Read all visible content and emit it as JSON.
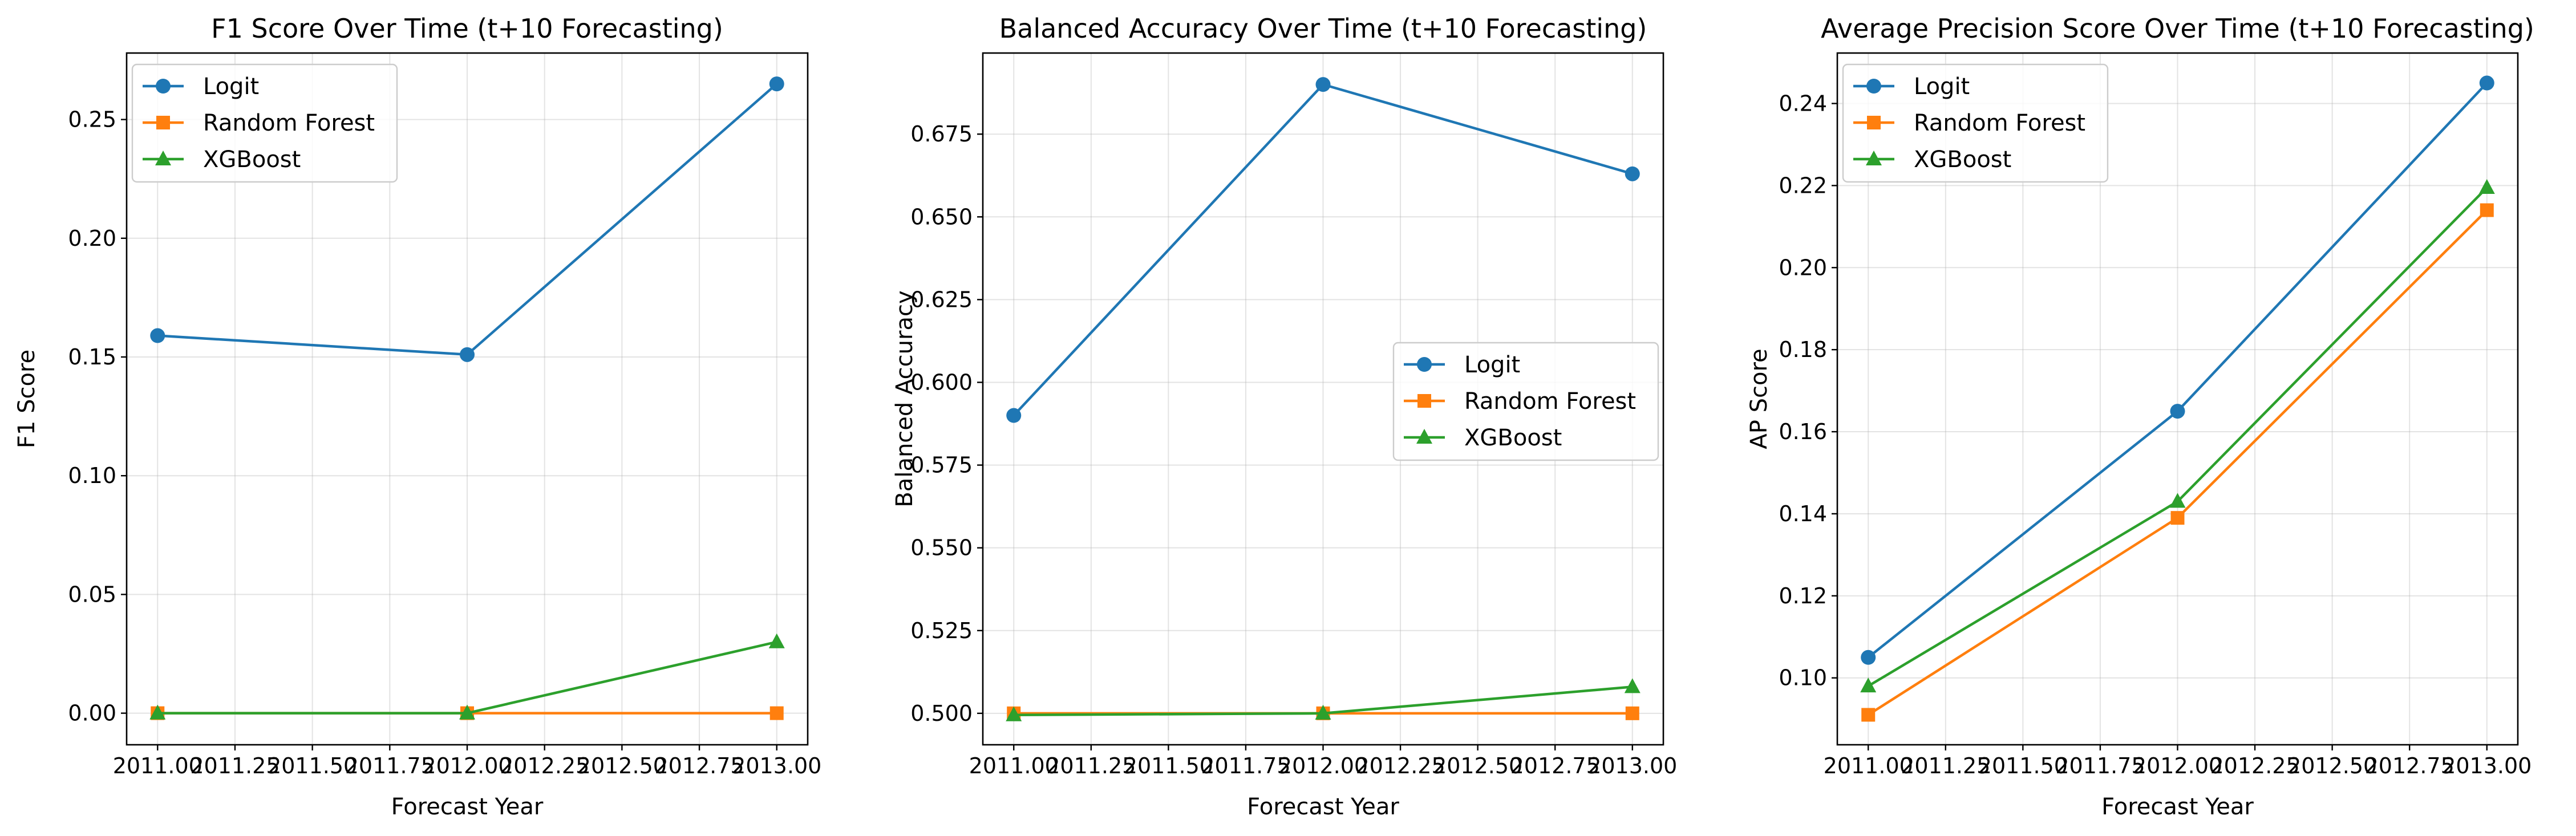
{
  "chart_data": [
    {
      "type": "line",
      "title": "F1 Score Over Time (t+10 Forecasting)",
      "xlabel": "Forecast Year",
      "ylabel": "F1 Score",
      "x": [
        2011,
        2012,
        2013
      ],
      "xticks": [
        "2011.00",
        "2011.25",
        "2011.50",
        "2011.75",
        "2012.00",
        "2012.25",
        "2012.50",
        "2012.75",
        "2013.00"
      ],
      "xlim": [
        2010.9,
        2013.1
      ],
      "ylim": [
        -0.0133,
        0.278
      ],
      "yticks": [
        "0.00",
        "0.05",
        "0.10",
        "0.15",
        "0.20",
        "0.25"
      ],
      "grid": true,
      "legend": "upper-left",
      "series": [
        {
          "name": "Logit",
          "values": [
            0.159,
            0.151,
            0.265
          ],
          "color": "#1f77b4",
          "marker": "circle"
        },
        {
          "name": "Random Forest",
          "values": [
            0.0,
            0.0,
            0.0
          ],
          "color": "#ff7f0e",
          "marker": "square"
        },
        {
          "name": "XGBoost",
          "values": [
            0.0,
            0.0,
            0.03
          ],
          "color": "#2ca02c",
          "marker": "triangle"
        }
      ]
    },
    {
      "type": "line",
      "title": "Balanced Accuracy Over Time (t+10 Forecasting)",
      "xlabel": "Forecast Year",
      "ylabel": "Balanced Accuracy",
      "x": [
        2011,
        2012,
        2013
      ],
      "xticks": [
        "2011.00",
        "2011.25",
        "2011.50",
        "2011.75",
        "2012.00",
        "2012.25",
        "2012.50",
        "2012.75",
        "2013.00"
      ],
      "xlim": [
        2010.9,
        2013.1
      ],
      "ylim": [
        0.4905,
        0.6995
      ],
      "yticks": [
        "0.500",
        "0.525",
        "0.550",
        "0.575",
        "0.600",
        "0.625",
        "0.650",
        "0.675"
      ],
      "grid": true,
      "legend": "center-right",
      "series": [
        {
          "name": "Logit",
          "values": [
            0.59,
            0.69,
            0.663
          ],
          "color": "#1f77b4",
          "marker": "circle"
        },
        {
          "name": "Random Forest",
          "values": [
            0.5,
            0.5,
            0.5
          ],
          "color": "#ff7f0e",
          "marker": "square"
        },
        {
          "name": "XGBoost",
          "values": [
            0.4995,
            0.5,
            0.508
          ],
          "color": "#2ca02c",
          "marker": "triangle"
        }
      ]
    },
    {
      "type": "line",
      "title": "Average Precision Score Over Time (t+10 Forecasting)",
      "xlabel": "Forecast Year",
      "ylabel": "AP Score",
      "x": [
        2011,
        2012,
        2013
      ],
      "xticks": [
        "2011.00",
        "2011.25",
        "2011.50",
        "2011.75",
        "2012.00",
        "2012.25",
        "2012.50",
        "2012.75",
        "2013.00"
      ],
      "xlim": [
        2010.9,
        2013.1
      ],
      "ylim": [
        0.0837,
        0.2523
      ],
      "yticks": [
        "0.10",
        "0.12",
        "0.14",
        "0.16",
        "0.18",
        "0.20",
        "0.22",
        "0.24"
      ],
      "grid": true,
      "legend": "upper-left",
      "series": [
        {
          "name": "Logit",
          "values": [
            0.105,
            0.165,
            0.245
          ],
          "color": "#1f77b4",
          "marker": "circle"
        },
        {
          "name": "Random Forest",
          "values": [
            0.091,
            0.139,
            0.214
          ],
          "color": "#ff7f0e",
          "marker": "square"
        },
        {
          "name": "XGBoost",
          "values": [
            0.098,
            0.143,
            0.2195
          ],
          "color": "#2ca02c",
          "marker": "triangle"
        }
      ]
    }
  ]
}
